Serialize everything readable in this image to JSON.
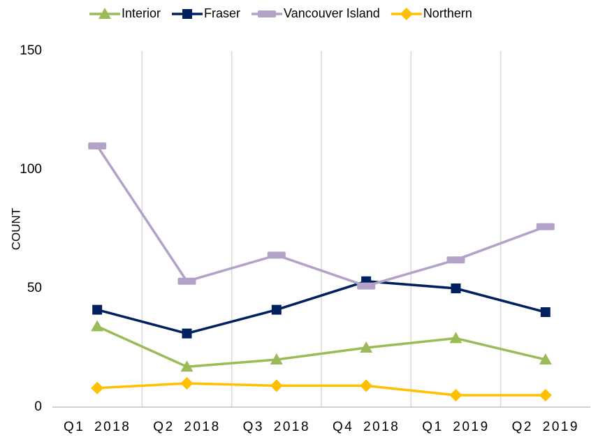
{
  "chart_data": {
    "type": "line",
    "y_label": "COUNT",
    "categories": [
      "Q1 2018",
      "Q2 2018",
      "Q3 2018",
      "Q4 2018",
      "Q1 2019",
      "Q2 2019"
    ],
    "series": [
      {
        "name": "Interior",
        "color": "#9bbb59",
        "marker": "triangle",
        "values": [
          34,
          17,
          20,
          25,
          29,
          20
        ]
      },
      {
        "name": "Fraser",
        "color": "#002060",
        "marker": "square",
        "values": [
          41,
          31,
          41,
          53,
          50,
          40
        ]
      },
      {
        "name": "Vancouver Island",
        "color": "#b3a2c7",
        "marker": "dash",
        "values": [
          110,
          53,
          64,
          51,
          62,
          76
        ]
      },
      {
        "name": "Northern",
        "color": "#ffc000",
        "marker": "diamond",
        "values": [
          8,
          10,
          9,
          9,
          5,
          5
        ]
      }
    ],
    "ylim": [
      0,
      150
    ],
    "yticks": [
      0,
      50,
      100,
      150
    ],
    "xgrid": true,
    "legend": "top"
  }
}
